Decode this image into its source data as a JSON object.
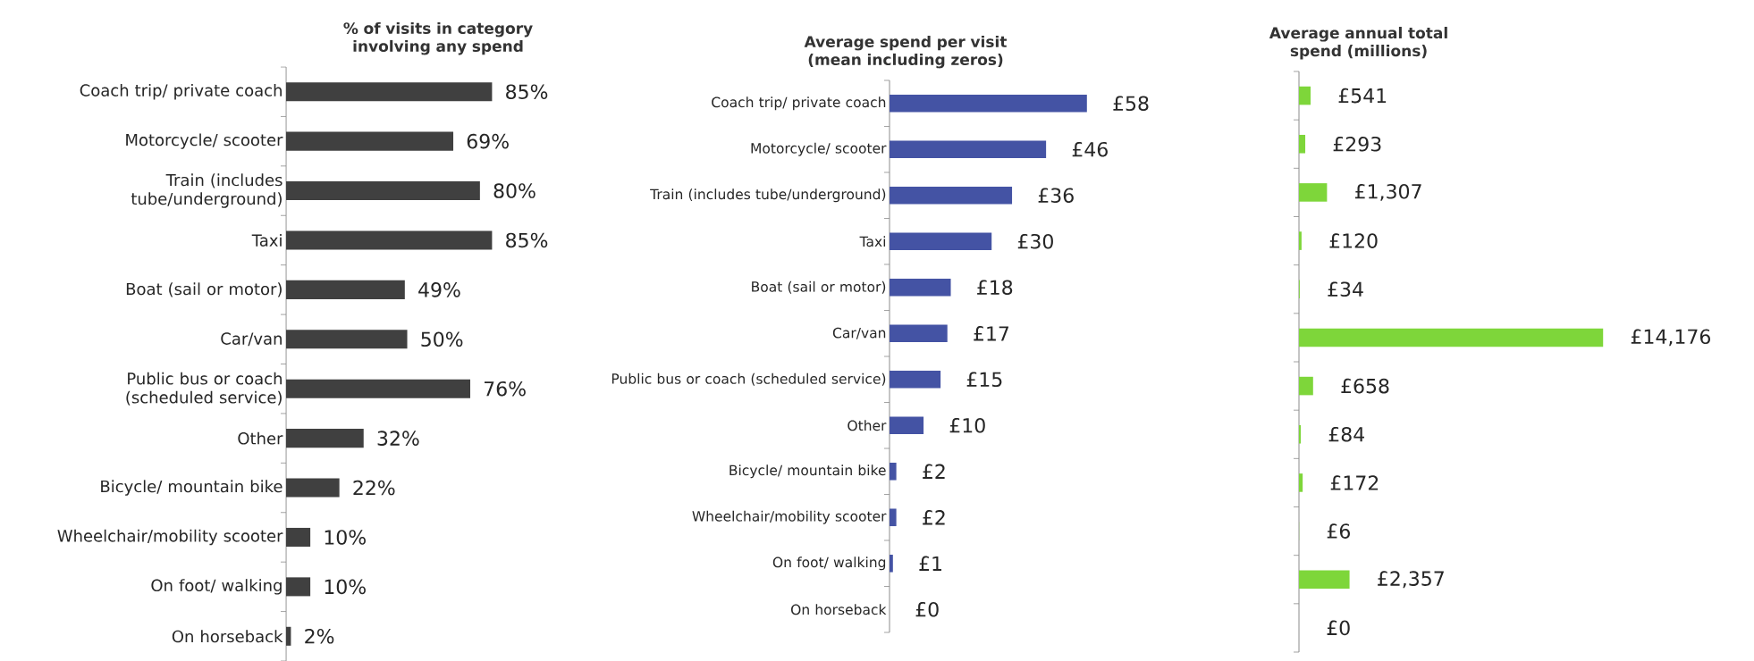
{
  "chart_data": [
    {
      "type": "bar",
      "orientation": "horizontal",
      "title": "% of visits in category involving any spend",
      "categories": [
        "Coach trip/ private coach",
        "Motorcycle/ scooter",
        "Train (includes tube/underground)",
        "Taxi",
        "Boat (sail or motor)",
        "Car/van",
        "Public bus or coach (scheduled service)",
        "Other",
        "Bicycle/ mountain bike",
        "Wheelchair/mobility scooter",
        "On foot/ walking",
        "On horseback"
      ],
      "values": [
        85,
        69,
        80,
        85,
        49,
        50,
        76,
        32,
        22,
        10,
        10,
        2
      ],
      "color": "#404040",
      "value_labels": [
        "85%",
        "69%",
        "80%",
        "85%",
        "49%",
        "50%",
        "76%",
        "32%",
        "22%",
        "10%",
        "10%",
        "2%"
      ],
      "tick_labels": "y"
    },
    {
      "type": "bar",
      "orientation": "horizontal",
      "title": "Average spend per visit (mean including zeros)",
      "categories": [
        "Coach trip/ private coach",
        "Motorcycle/ scooter",
        "Train (includes tube/underground)",
        "Taxi",
        "Boat (sail or motor)",
        "Car/van",
        "Public bus or coach (scheduled service)",
        "Other",
        "Bicycle/ mountain bike",
        "Wheelchair/mobility scooter",
        "On foot/ walking",
        "On horseback"
      ],
      "values": [
        58,
        46,
        36,
        30,
        18,
        17,
        15,
        10,
        2,
        2,
        1,
        0
      ],
      "color": "#4453a4",
      "value_labels": [
        "£58",
        "£46",
        "£36",
        "£30",
        "£18",
        "£17",
        "£15",
        "£10",
        "£2",
        "£2",
        "£1",
        "£0"
      ],
      "tick_labels": "y"
    },
    {
      "type": "bar",
      "orientation": "horizontal",
      "title": "Average annual total spend (millions)",
      "categories": [
        null,
        null,
        null,
        null,
        null,
        null,
        null,
        null,
        null,
        null,
        null,
        null
      ],
      "values": [
        541,
        293,
        1307,
        120,
        34,
        14176,
        658,
        84,
        172,
        6,
        2357,
        0
      ],
      "color": "#7ed63a",
      "value_labels": [
        "£541",
        "£293",
        "£1,307",
        "£120",
        "£34",
        "£14,176",
        "£658",
        "£84",
        "£172",
        "£6",
        "£2,357",
        "£0"
      ],
      "tick_labels": false
    }
  ]
}
